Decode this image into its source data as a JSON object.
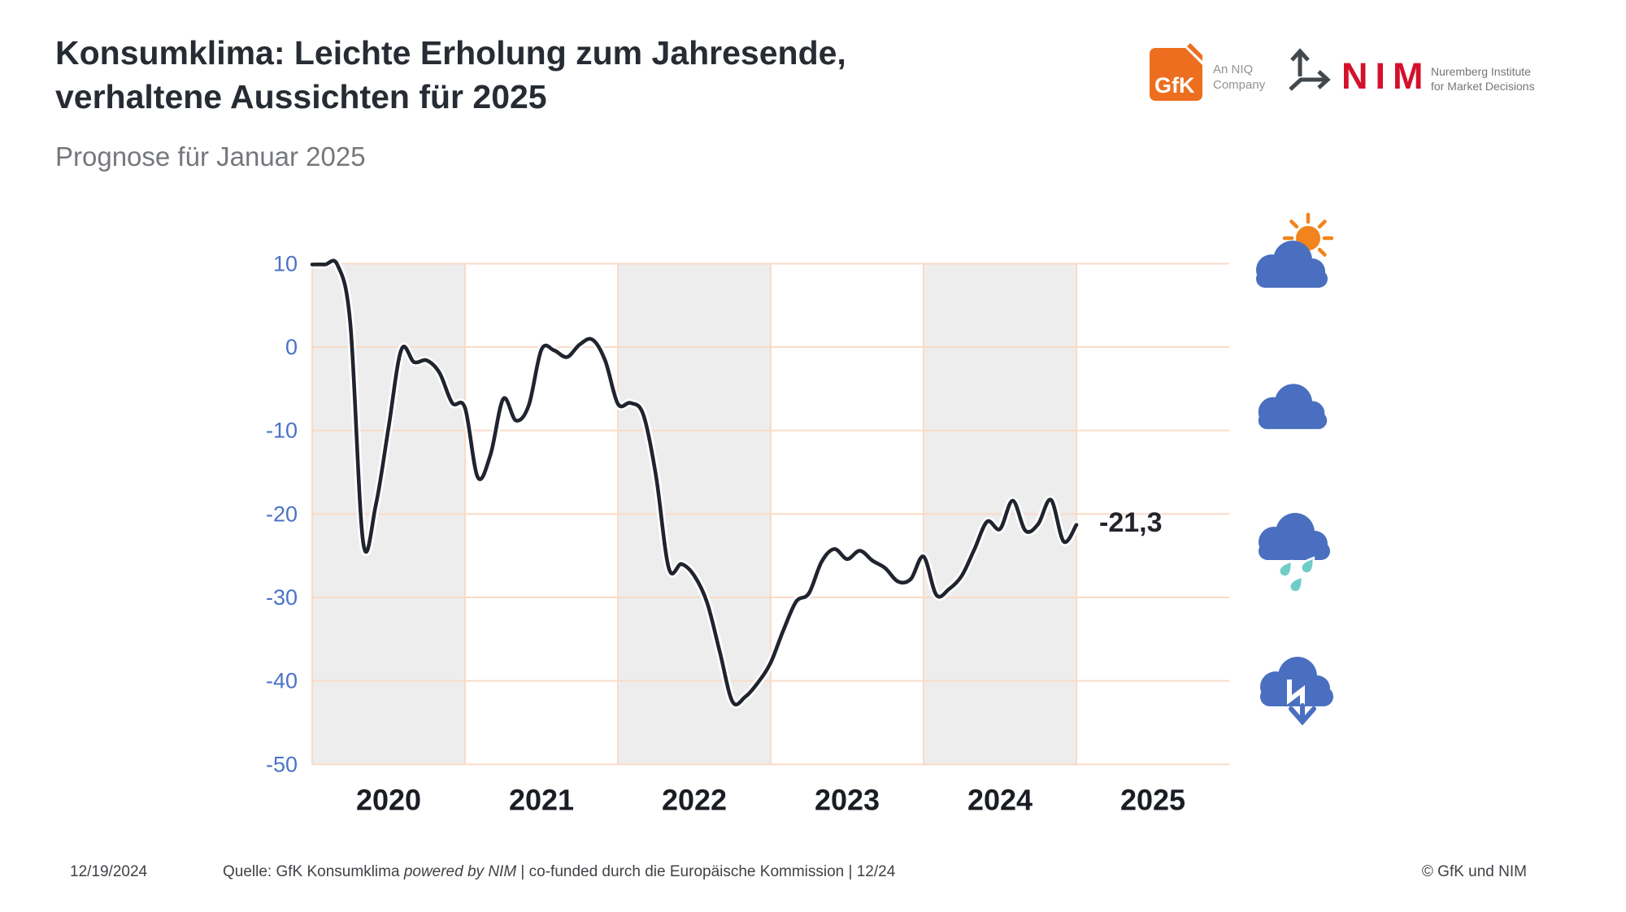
{
  "header": {
    "title_line1": "Konsumklima: Leichte Erholung zum Jahresende,",
    "title_line2": "verhaltene Aussichten für 2025",
    "subtitle": "Prognose für Januar 2025"
  },
  "logos": {
    "gfk_text": "GfK",
    "gfk_orange": "#ec6e1e",
    "gfk_tagline_line1": "An NIQ",
    "gfk_tagline_line2": "Company",
    "nim_text": "NIM",
    "nim_red": "#d4112b",
    "nim_dark": "#43484d",
    "nim_tagline_line1": "Nuremberg Institute",
    "nim_tagline_line2": "for Market Decisions"
  },
  "chart_data": {
    "type": "line",
    "title": "GfK Konsumklima Indikator",
    "x_unit": "month",
    "x_start": "2020-01",
    "x_end": "2025-01",
    "x_years": [
      2020,
      2021,
      2022,
      2023,
      2024,
      2025
    ],
    "shaded_years": [
      2020,
      2022,
      2024
    ],
    "values": [
      9.9,
      9.9,
      9.8,
      2.7,
      -23.4,
      -18.9,
      -9.6,
      -0.3,
      -1.8,
      -1.6,
      -3.1,
      -6.7,
      -7.3,
      -15.6,
      -12.9,
      -6.2,
      -8.8,
      -7.0,
      -0.3,
      -0.4,
      -1.2,
      0.3,
      0.9,
      -1.6,
      -6.8,
      -6.7,
      -8.1,
      -15.5,
      -26.5,
      -26.0,
      -27.4,
      -30.6,
      -36.5,
      -42.5,
      -41.9,
      -40.2,
      -37.8,
      -33.9,
      -30.5,
      -29.5,
      -25.7,
      -24.2,
      -25.4,
      -24.4,
      -25.6,
      -26.5,
      -28.1,
      -27.8,
      -25.1,
      -29.7,
      -29.0,
      -27.4,
      -24.2,
      -20.9,
      -21.8,
      -18.4,
      -22.0,
      -21.2,
      -18.3,
      -23.3,
      -21.3
    ],
    "yticks": [
      10,
      0,
      -10,
      -20,
      -30,
      -40,
      -50
    ],
    "ylim": [
      -50,
      10
    ],
    "grid": true,
    "legend": "none",
    "end_value": -21.3,
    "end_label": "-21,3",
    "colors": {
      "line": "#20242e",
      "line_halo": "#ffffff",
      "grid": "#f9dbc8",
      "band": "#ededee",
      "ytick": "#4a73c8",
      "xtick": "#1a1d24",
      "end_label": "#22252b"
    }
  },
  "icons": {
    "blue": "#4a6fc0",
    "orange": "#f1841c",
    "teal": "#6fcdc7",
    "drop_outline": "#ffffff",
    "items": [
      {
        "name": "cloud-sun-icon",
        "meaning": "partly sunny"
      },
      {
        "name": "cloud-icon",
        "meaning": "cloudy"
      },
      {
        "name": "cloud-rain-icon",
        "meaning": "rainy"
      },
      {
        "name": "cloud-arrow-down-icon",
        "meaning": "declining"
      }
    ]
  },
  "footer": {
    "date": "12/19/2024",
    "source_prefix": "Quelle: GfK Konsumklima ",
    "source_italic": "powered by NIM",
    "source_suffix": " | co-funded durch die Europäische Kommission | 12/24",
    "copyright": "© GfK und NIM"
  }
}
